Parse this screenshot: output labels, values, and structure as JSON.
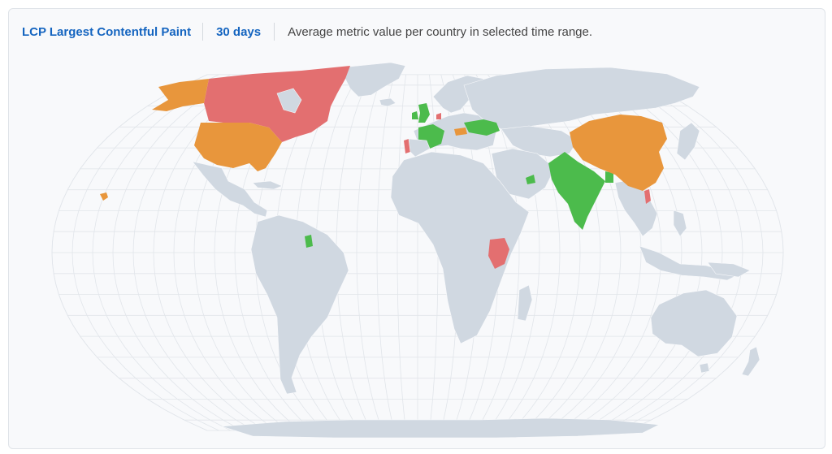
{
  "header": {
    "metric_label": "LCP Largest Contentful Paint",
    "range_label": "30 days",
    "description": "Average metric value per country in selected time range."
  },
  "legend_colors": {
    "good": "#4cbb4c",
    "needs_improvement": "#e8963c",
    "poor": "#e36f70",
    "no_data": "#d0d8e1"
  },
  "map": {
    "projection": "natural-earth",
    "country_status": {
      "Canada": "poor",
      "United States": "needs_improvement",
      "Alaska": "needs_improvement",
      "Hawaii": "needs_improvement",
      "United Kingdom": "good",
      "Ireland": "good",
      "France": "good",
      "Portugal": "poor",
      "Denmark": "poor",
      "Ukraine": "good",
      "Romania": "needs_improvement",
      "Guyana": "good",
      "Kenya": "poor",
      "United Arab Emirates": "good",
      "India": "good",
      "Bangladesh": "good",
      "China": "needs_improvement",
      "Vietnam": "poor"
    }
  }
}
